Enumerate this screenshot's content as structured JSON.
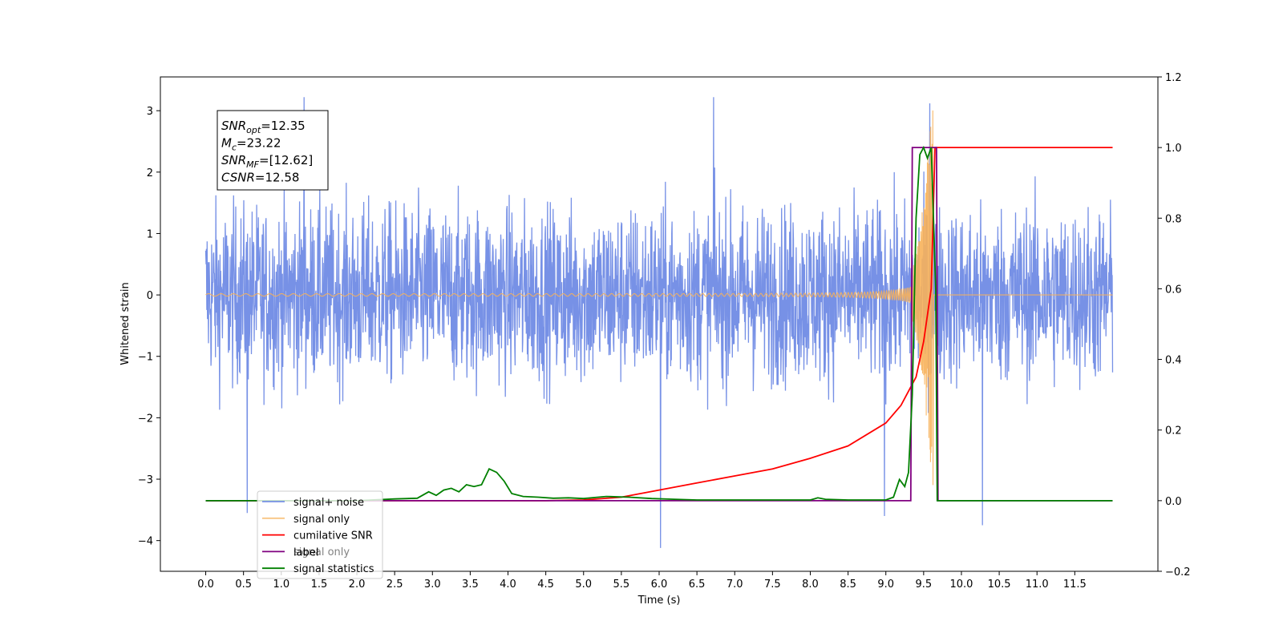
{
  "chart_data": {
    "type": "line",
    "xlabel": "Time (s)",
    "ylabel": "Whitened strain",
    "xlim": [
      -0.6,
      12.6
    ],
    "ylim_left": [
      -4.5,
      3.55
    ],
    "ylim_right": [
      -0.2,
      1.2
    ],
    "x_ticks": [
      "0.0",
      "0.5",
      "1.0",
      "1.5",
      "2.0",
      "2.5",
      "3.0",
      "3.5",
      "4.0",
      "4.5",
      "5.0",
      "5.5",
      "6.0",
      "6.5",
      "7.0",
      "7.5",
      "8.0",
      "8.5",
      "9.0",
      "9.5",
      "10.0",
      "10.5",
      "11.0",
      "11.5"
    ],
    "y_ticks_left": [
      "3",
      "2",
      "1",
      "0",
      "−1",
      "−2",
      "−3",
      "−4"
    ],
    "y_ticks_right": [
      "1.2",
      "1.0",
      "0.8",
      "0.6",
      "0.4",
      "0.2",
      "0.0",
      "−0.2"
    ],
    "annotation": {
      "lines": [
        {
          "main": "SNR",
          "sub": "opt",
          "rest": "=12.35"
        },
        {
          "main": "M",
          "sub": "c",
          "rest": "=23.22"
        },
        {
          "main": "SNR",
          "sub": "MF",
          "rest": "=[12.62]"
        },
        {
          "main": "CSNR",
          "sub": "",
          "rest": "=12.58"
        }
      ]
    },
    "legend": {
      "position": "lower-left",
      "entries": [
        "signal+ noise",
        "signal only",
        "cumilative SNR",
        "label",
        "signal statistics"
      ],
      "overlapped_entry_text": "signal only"
    },
    "colors": {
      "noise": "#6b88e4",
      "signal": "#f7b15a",
      "cumulative_snr": "#ff0000",
      "label": "#800080",
      "statistics": "#008000"
    },
    "series": [
      {
        "name": "signal+ noise",
        "axis": "left",
        "description_stats": {
          "t_start": 0.0,
          "t_end": 12.0,
          "typical_amplitude": 1.3,
          "max": 3.22,
          "min": -4.12
        },
        "peaks": [
          [
            0.55,
            -3.55
          ],
          [
            1.3,
            3.22
          ],
          [
            6.02,
            -4.12
          ],
          [
            6.72,
            3.22
          ],
          [
            9.58,
            3.12
          ],
          [
            10.28,
            -3.75
          ],
          [
            8.98,
            -3.6
          ]
        ]
      },
      {
        "name": "signal only",
        "axis": "left",
        "chirp": {
          "t_start": 0.0,
          "t_merger": 9.63,
          "t_end": 12.0,
          "peak_amplitude": 3.3,
          "early_amplitude": 0.02
        }
      },
      {
        "name": "cumilative SNR",
        "axis": "right",
        "x": [
          0.0,
          4.5,
          5.0,
          5.5,
          6.0,
          6.5,
          7.0,
          7.5,
          8.0,
          8.5,
          9.0,
          9.2,
          9.4,
          9.5,
          9.6,
          9.65,
          12.0
        ],
        "values": [
          0.0,
          0.0,
          0.002,
          0.01,
          0.03,
          0.05,
          0.07,
          0.09,
          0.12,
          0.155,
          0.22,
          0.27,
          0.35,
          0.45,
          0.6,
          1.0,
          1.0
        ]
      },
      {
        "name": "label",
        "axis": "right",
        "x": [
          0.0,
          9.33,
          9.35,
          9.67,
          9.69,
          12.0
        ],
        "values": [
          0.0,
          0.0,
          1.0,
          1.0,
          0.0,
          0.0
        ]
      },
      {
        "name": "signal statistics",
        "axis": "right",
        "x": [
          0.0,
          2.0,
          2.5,
          2.8,
          2.95,
          3.05,
          3.15,
          3.25,
          3.35,
          3.45,
          3.55,
          3.65,
          3.75,
          3.85,
          3.95,
          4.05,
          4.2,
          4.4,
          4.6,
          4.8,
          5.0,
          5.3,
          5.6,
          5.9,
          6.2,
          6.5,
          7.5,
          8.0,
          8.1,
          8.2,
          8.5,
          9.0,
          9.1,
          9.18,
          9.25,
          9.3,
          9.35,
          9.4,
          9.45,
          9.5,
          9.55,
          9.6,
          9.66,
          9.68,
          12.0
        ],
        "values": [
          0.0,
          0.0,
          0.005,
          0.007,
          0.025,
          0.015,
          0.03,
          0.035,
          0.025,
          0.045,
          0.04,
          0.045,
          0.09,
          0.08,
          0.055,
          0.02,
          0.012,
          0.01,
          0.007,
          0.008,
          0.006,
          0.012,
          0.01,
          0.006,
          0.004,
          0.002,
          0.002,
          0.002,
          0.008,
          0.004,
          0.002,
          0.002,
          0.01,
          0.06,
          0.04,
          0.08,
          0.3,
          0.8,
          0.98,
          1.0,
          0.97,
          1.0,
          0.6,
          0.0,
          0.0
        ]
      }
    ]
  }
}
